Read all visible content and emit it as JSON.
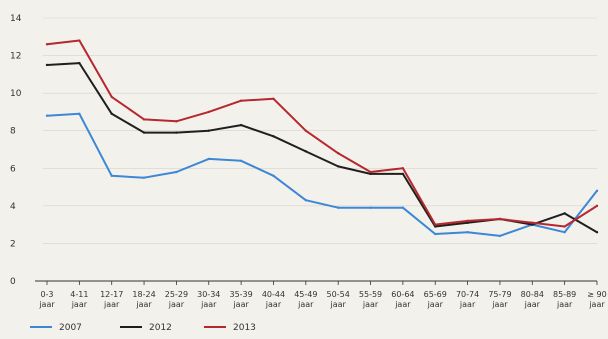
{
  "colors": {
    "background": "#f3f1ec",
    "s2007": "#3c87d6",
    "s2012": "#1f1f1f",
    "s2013": "#b5282e",
    "grid": "#d6d3cc"
  },
  "chart_data": {
    "type": "line",
    "title": "",
    "xlabel": "",
    "ylabel": "",
    "ylim": [
      0,
      14
    ],
    "yticks": [
      0,
      2,
      4,
      6,
      8,
      10,
      12,
      14
    ],
    "grid": true,
    "legend_position": "bottom-left",
    "categories": [
      [
        "0-3",
        "jaar"
      ],
      [
        "4-11",
        "jaar"
      ],
      [
        "12-17",
        "jaar"
      ],
      [
        "18-24",
        "jaar"
      ],
      [
        "25-29",
        "jaar"
      ],
      [
        "30-34",
        "jaar"
      ],
      [
        "35-39",
        "jaar"
      ],
      [
        "40-44",
        "jaar"
      ],
      [
        "45-49",
        "jaar"
      ],
      [
        "50-54",
        "jaar"
      ],
      [
        "55-59",
        "jaar"
      ],
      [
        "60-64",
        "jaar"
      ],
      [
        "65-69",
        "jaar"
      ],
      [
        "70-74",
        "jaar"
      ],
      [
        "75-79",
        "jaar"
      ],
      [
        "80-84",
        "jaar"
      ],
      [
        "85-89",
        "jaar"
      ],
      [
        "≥ 90",
        "jaar"
      ]
    ],
    "series": [
      {
        "name": "2007",
        "color": "#3c87d6",
        "values": [
          8.8,
          8.9,
          5.6,
          5.5,
          5.8,
          6.5,
          6.4,
          5.6,
          4.3,
          3.9,
          3.9,
          3.9,
          2.5,
          2.6,
          2.4,
          3.0,
          2.6,
          4.8
        ]
      },
      {
        "name": "2012",
        "color": "#1f1f1f",
        "values": [
          11.5,
          11.6,
          8.9,
          7.9,
          7.9,
          8.0,
          8.3,
          7.7,
          6.9,
          6.1,
          5.7,
          5.7,
          2.9,
          3.1,
          3.3,
          3.0,
          3.6,
          2.6
        ]
      },
      {
        "name": "2013",
        "color": "#b5282e",
        "values": [
          12.6,
          12.8,
          9.8,
          8.6,
          8.5,
          9.0,
          9.6,
          9.7,
          8.0,
          6.8,
          5.8,
          6.0,
          3.0,
          3.2,
          3.3,
          3.1,
          2.9,
          4.0
        ]
      }
    ]
  }
}
